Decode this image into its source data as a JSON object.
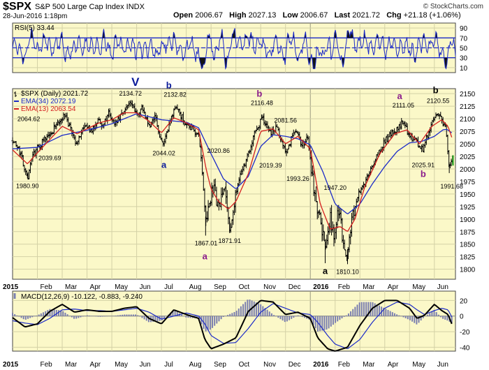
{
  "header": {
    "ticker": "$SPX",
    "description": "S&P 500 Large Cap Index  INDX",
    "date": "28-Jun-2016 1:18pm",
    "credit": "© StockCharts.com",
    "open_label": "Open",
    "open": "2006.67",
    "high_label": "High",
    "high": "2027.13",
    "low_label": "Low",
    "low": "2006.67",
    "last_label": "Last",
    "last": "2021.72",
    "chg_label": "Chg",
    "chg": "+21.18 (+1.06%)"
  },
  "colors": {
    "panel_bg": "#fbf8c8",
    "ema34": "#1c2bc8",
    "ema13": "#d42020",
    "rsi_fill": "#141414",
    "rsi_line": "#1c2bc8",
    "macd_hist": "#7b7fb0",
    "bars": "#000000",
    "wave_blue": "#0a1a9a",
    "wave_purple": "#8a1a8a"
  },
  "chart_data": [
    {
      "type": "line",
      "title": "RSI(5) 33.44",
      "ylim": [
        0,
        100
      ],
      "y_ticks": [
        10,
        30,
        50,
        70,
        90
      ],
      "levels": [
        30,
        50,
        70
      ],
      "value": 33.44
    },
    {
      "type": "line",
      "title": "$SPX (Daily) 2021.72",
      "legend": [
        {
          "name": "$SPX (Daily) 2021.72",
          "color": "#000000"
        },
        {
          "name": "EMA(34) 2072.19",
          "color": "#1c2bc8"
        },
        {
          "name": "EMA(13) 2063.54",
          "color": "#d42020"
        }
      ],
      "ylim": [
        1780,
        2160
      ],
      "y_ticks": [
        1800,
        1825,
        1850,
        1875,
        1900,
        1925,
        1950,
        1975,
        2000,
        2025,
        2050,
        2075,
        2100,
        2125,
        2150
      ],
      "x_labels": [
        {
          "t": 0,
          "label": "2015",
          "bold": true
        },
        {
          "t": 1,
          "label": "Feb"
        },
        {
          "t": 2,
          "label": "Mar"
        },
        {
          "t": 3,
          "label": "Apr"
        },
        {
          "t": 4,
          "label": "May"
        },
        {
          "t": 5,
          "label": "Jun"
        },
        {
          "t": 6,
          "label": "Jul"
        },
        {
          "t": 7,
          "label": "Aug"
        },
        {
          "t": 8,
          "label": "Sep"
        },
        {
          "t": 9,
          "label": "Oct"
        },
        {
          "t": 10,
          "label": "Nov"
        },
        {
          "t": 11,
          "label": "Dec"
        },
        {
          "t": 12,
          "label": "2016",
          "bold": true
        },
        {
          "t": 13,
          "label": "Feb"
        },
        {
          "t": 14,
          "label": "Mar"
        },
        {
          "t": 15,
          "label": "Apr"
        },
        {
          "t": 16,
          "label": "May"
        },
        {
          "t": 17,
          "label": "Jun"
        }
      ],
      "price_points": [
        [
          0.0,
          2058
        ],
        [
          0.25,
          2038
        ],
        [
          0.45,
          2010
        ],
        [
          0.6,
          1981
        ],
        [
          0.8,
          2022
        ],
        [
          1.0,
          2042
        ],
        [
          1.25,
          2055
        ],
        [
          1.5,
          2068
        ],
        [
          1.8,
          2092
        ],
        [
          2.1,
          2105
        ],
        [
          2.35,
          2080
        ],
        [
          2.55,
          2045
        ],
        [
          2.75,
          2072
        ],
        [
          3.0,
          2085
        ],
        [
          3.2,
          2075
        ],
        [
          3.45,
          2102
        ],
        [
          3.65,
          2085
        ],
        [
          3.85,
          2112
        ],
        [
          4.1,
          2090
        ],
        [
          4.35,
          2108
        ],
        [
          4.55,
          2122
        ],
        [
          4.75,
          2130
        ],
        [
          5.0,
          2112
        ],
        [
          5.25,
          2120
        ],
        [
          5.5,
          2085
        ],
        [
          5.75,
          2105
        ],
        [
          5.9,
          2065
        ],
        [
          6.1,
          2048
        ],
        [
          6.35,
          2092
        ],
        [
          6.55,
          2126
        ],
        [
          6.8,
          2105
        ],
        [
          7.0,
          2090
        ],
        [
          7.25,
          2080
        ],
        [
          7.5,
          2065
        ],
        [
          7.65,
          1992
        ],
        [
          7.8,
          1880
        ],
        [
          7.95,
          1940
        ],
        [
          8.1,
          1960
        ],
        [
          8.3,
          1918
        ],
        [
          8.55,
          1962
        ],
        [
          8.75,
          1885
        ],
        [
          8.95,
          1935
        ],
        [
          9.2,
          1992
        ],
        [
          9.45,
          2020
        ],
        [
          9.7,
          2065
        ],
        [
          9.9,
          2085
        ],
        [
          10.05,
          2100
        ],
        [
          10.25,
          2082
        ],
        [
          10.45,
          2072
        ],
        [
          10.65,
          2085
        ],
        [
          10.85,
          2055
        ],
        [
          11.05,
          2030
        ],
        [
          11.25,
          2062
        ],
        [
          11.45,
          2078
        ],
        [
          11.65,
          2045
        ],
        [
          11.9,
          2062
        ],
        [
          12.05,
          1995
        ],
        [
          12.25,
          1925
        ],
        [
          12.45,
          1885
        ],
        [
          12.6,
          1845
        ],
        [
          12.8,
          1905
        ],
        [
          12.95,
          1868
        ],
        [
          13.15,
          1920
        ],
        [
          13.35,
          1842
        ],
        [
          13.5,
          1830
        ],
        [
          13.7,
          1905
        ],
        [
          13.9,
          1948
        ],
        [
          14.2,
          1975
        ],
        [
          14.5,
          2008
        ],
        [
          14.8,
          2035
        ],
        [
          15.0,
          2055
        ],
        [
          15.25,
          2068
        ],
        [
          15.5,
          2082
        ],
        [
          15.75,
          2095
        ],
        [
          15.95,
          2072
        ],
        [
          16.15,
          2058
        ],
        [
          16.4,
          2048
        ],
        [
          16.55,
          2040
        ],
        [
          16.75,
          2072
        ],
        [
          16.95,
          2098
        ],
        [
          17.15,
          2112
        ],
        [
          17.3,
          2096
        ],
        [
          17.45,
          2082
        ],
        [
          17.55,
          2028
        ],
        [
          17.6,
          2000
        ],
        [
          17.7,
          2022
        ]
      ],
      "ema34_points": [
        [
          0.0,
          2040
        ],
        [
          1.0,
          2043
        ],
        [
          2.0,
          2067
        ],
        [
          3.0,
          2077
        ],
        [
          4.0,
          2090
        ],
        [
          5.0,
          2110
        ],
        [
          6.0,
          2098
        ],
        [
          7.0,
          2093
        ],
        [
          7.5,
          2082
        ],
        [
          8.0,
          2030
        ],
        [
          8.5,
          1980
        ],
        [
          9.0,
          1960
        ],
        [
          9.5,
          1985
        ],
        [
          10.0,
          2045
        ],
        [
          10.5,
          2068
        ],
        [
          11.0,
          2065
        ],
        [
          11.5,
          2060
        ],
        [
          12.0,
          2048
        ],
        [
          12.5,
          1995
        ],
        [
          13.0,
          1930
        ],
        [
          13.5,
          1910
        ],
        [
          14.0,
          1930
        ],
        [
          14.5,
          1970
        ],
        [
          15.0,
          2005
        ],
        [
          15.5,
          2035
        ],
        [
          16.0,
          2052
        ],
        [
          16.5,
          2055
        ],
        [
          17.0,
          2065
        ],
        [
          17.35,
          2078
        ],
        [
          17.5,
          2079
        ],
        [
          17.7,
          2072
        ]
      ],
      "ema13_points": [
        [
          0.0,
          2038
        ],
        [
          0.6,
          2010
        ],
        [
          1.0,
          2032
        ],
        [
          2.0,
          2085
        ],
        [
          2.6,
          2070
        ],
        [
          3.0,
          2080
        ],
        [
          3.5,
          2092
        ],
        [
          4.0,
          2098
        ],
        [
          4.5,
          2112
        ],
        [
          5.0,
          2112
        ],
        [
          5.5,
          2095
        ],
        [
          6.0,
          2072
        ],
        [
          6.5,
          2102
        ],
        [
          7.0,
          2092
        ],
        [
          7.5,
          2078
        ],
        [
          7.8,
          2000
        ],
        [
          8.0,
          1960
        ],
        [
          8.3,
          1935
        ],
        [
          8.7,
          1920
        ],
        [
          9.0,
          1935
        ],
        [
          9.5,
          1990
        ],
        [
          10.0,
          2075
        ],
        [
          10.5,
          2080
        ],
        [
          11.0,
          2050
        ],
        [
          11.5,
          2065
        ],
        [
          12.0,
          2040
        ],
        [
          12.4,
          1930
        ],
        [
          12.8,
          1880
        ],
        [
          13.2,
          1885
        ],
        [
          13.5,
          1875
        ],
        [
          13.8,
          1900
        ],
        [
          14.2,
          1965
        ],
        [
          14.8,
          2030
        ],
        [
          15.4,
          2070
        ],
        [
          15.9,
          2078
        ],
        [
          16.4,
          2050
        ],
        [
          16.9,
          2085
        ],
        [
          17.3,
          2098
        ],
        [
          17.55,
          2085
        ],
        [
          17.7,
          2063
        ]
      ],
      "annotations": [
        {
          "t": 0.7,
          "y": 2064.62,
          "text": "2064.62",
          "anchor": "start",
          "dy": -22,
          "dx": -18
        },
        {
          "t": 0.6,
          "y": 1980.9,
          "text": "1980.90",
          "anchor": "middle",
          "dy": 14
        },
        {
          "t": 1.5,
          "y": 2039.69,
          "text": "2039.69",
          "anchor": "middle",
          "dy": 16
        },
        {
          "t": 4.75,
          "y": 2134.72,
          "text": "2134.72",
          "anchor": "middle",
          "dy": -8
        },
        {
          "t": 6.55,
          "y": 2132.82,
          "text": "2132.82",
          "anchor": "middle",
          "dy": -8
        },
        {
          "t": 6.1,
          "y": 2044.02,
          "text": "2044.02",
          "anchor": "middle",
          "dy": 12
        },
        {
          "t": 8.3,
          "y": 2020.86,
          "text": "2020.86",
          "anchor": "middle",
          "dy": -8
        },
        {
          "t": 7.8,
          "y": 1867.01,
          "text": "1867.01",
          "anchor": "middle",
          "dy": 14
        },
        {
          "t": 8.75,
          "y": 1871.91,
          "text": "1871.91",
          "anchor": "middle",
          "dy": 14
        },
        {
          "t": 10.05,
          "y": 2116.48,
          "text": "2116.48",
          "anchor": "middle",
          "dy": -8
        },
        {
          "t": 10.4,
          "y": 2019.39,
          "text": "2019.39",
          "anchor": "middle",
          "dy": 12
        },
        {
          "t": 11.0,
          "y": 2081.56,
          "text": "2081.56",
          "anchor": "middle",
          "dy": -8
        },
        {
          "t": 11.5,
          "y": 1993.26,
          "text": "1993.26",
          "anchor": "middle",
          "dy": 12
        },
        {
          "t": 13.0,
          "y": 1947.2,
          "text": "1947.20",
          "anchor": "middle",
          "dy": -8
        },
        {
          "t": 13.5,
          "y": 1810.1,
          "text": "1810.10",
          "anchor": "middle",
          "dy": 14
        },
        {
          "t": 15.75,
          "y": 2111.05,
          "text": "2111.05",
          "anchor": "middle",
          "dy": -8
        },
        {
          "t": 17.15,
          "y": 2120.55,
          "text": "2120.55",
          "anchor": "middle",
          "dy": -8
        },
        {
          "t": 16.55,
          "y": 2025.91,
          "text": "2025.91",
          "anchor": "middle",
          "dy": 16
        },
        {
          "t": 17.7,
          "y": 1991.68,
          "text": "1991.68",
          "anchor": "middle",
          "dy": 22
        }
      ],
      "wave_labels": [
        {
          "t": 4.95,
          "y": 2134.72,
          "text": "V",
          "color": "#0a1a9a",
          "size": 17,
          "dy": -22
        },
        {
          "t": 6.3,
          "y": 2132.82,
          "text": "b",
          "color": "#0a1a9a",
          "size": 13,
          "dy": -20
        },
        {
          "t": 6.1,
          "y": 2044.02,
          "text": "a",
          "color": "#0a1a9a",
          "size": 13,
          "dy": 30
        },
        {
          "t": 7.75,
          "y": 1867.01,
          "text": "a",
          "color": "#8a1a8a",
          "size": 13,
          "dy": 34
        },
        {
          "t": 9.95,
          "y": 2116.48,
          "text": "b",
          "color": "#8a1a8a",
          "size": 13,
          "dy": -20
        },
        {
          "t": 12.6,
          "y": 1810.1,
          "text": "a",
          "color": "#000000",
          "size": 13,
          "dy": 14
        },
        {
          "t": 15.6,
          "y": 2111.05,
          "text": "a",
          "color": "#8a1a8a",
          "size": 13,
          "dy": -20
        },
        {
          "t": 17.05,
          "y": 2120.55,
          "text": "b",
          "color": "#000000",
          "size": 13,
          "dy": -22
        },
        {
          "t": 16.55,
          "y": 2025.91,
          "text": "b",
          "color": "#8a1a8a",
          "size": 13,
          "dy": 30
        }
      ]
    },
    {
      "type": "line",
      "title": "MACD(12,26,9) -10.122, -0.883, -9.240",
      "ylim": [
        -45,
        32
      ],
      "y_ticks": [
        -40,
        -20,
        0,
        20
      ],
      "macd_points": [
        [
          0.0,
          -2
        ],
        [
          0.5,
          -14
        ],
        [
          1.0,
          -10
        ],
        [
          1.5,
          6
        ],
        [
          2.0,
          15
        ],
        [
          2.5,
          5
        ],
        [
          3.0,
          8
        ],
        [
          3.5,
          6
        ],
        [
          4.0,
          6
        ],
        [
          4.5,
          10
        ],
        [
          5.0,
          12
        ],
        [
          5.5,
          -3
        ],
        [
          6.0,
          -10
        ],
        [
          6.5,
          8
        ],
        [
          7.0,
          2
        ],
        [
          7.5,
          -3
        ],
        [
          7.75,
          -30
        ],
        [
          8.0,
          -42
        ],
        [
          8.5,
          -36
        ],
        [
          9.0,
          -28
        ],
        [
          9.5,
          6
        ],
        [
          10.0,
          20
        ],
        [
          10.5,
          18
        ],
        [
          11.0,
          2
        ],
        [
          11.5,
          5
        ],
        [
          12.0,
          -3
        ],
        [
          12.3,
          -28
        ],
        [
          12.7,
          -42
        ],
        [
          13.0,
          -45
        ],
        [
          13.5,
          -40
        ],
        [
          14.0,
          -12
        ],
        [
          14.5,
          10
        ],
        [
          15.0,
          20
        ],
        [
          15.5,
          20
        ],
        [
          16.0,
          10
        ],
        [
          16.3,
          -3
        ],
        [
          16.6,
          1
        ],
        [
          17.0,
          15
        ],
        [
          17.3,
          7
        ],
        [
          17.55,
          2
        ],
        [
          17.7,
          -10
        ]
      ],
      "signal_points": [
        [
          0.0,
          -6
        ],
        [
          0.5,
          -9
        ],
        [
          1.0,
          -11
        ],
        [
          1.5,
          -3
        ],
        [
          2.0,
          8
        ],
        [
          2.5,
          9
        ],
        [
          3.0,
          7
        ],
        [
          3.5,
          7
        ],
        [
          4.0,
          6
        ],
        [
          4.5,
          8
        ],
        [
          5.0,
          10
        ],
        [
          5.5,
          5
        ],
        [
          6.0,
          -4
        ],
        [
          6.5,
          0
        ],
        [
          7.0,
          4
        ],
        [
          7.5,
          0
        ],
        [
          7.75,
          -10
        ],
        [
          8.0,
          -25
        ],
        [
          8.5,
          -35
        ],
        [
          9.0,
          -34
        ],
        [
          9.5,
          -16
        ],
        [
          10.0,
          5
        ],
        [
          10.5,
          16
        ],
        [
          11.0,
          10
        ],
        [
          11.5,
          4
        ],
        [
          12.0,
          2
        ],
        [
          12.3,
          -8
        ],
        [
          12.7,
          -25
        ],
        [
          13.0,
          -36
        ],
        [
          13.5,
          -42
        ],
        [
          14.0,
          -30
        ],
        [
          14.5,
          -8
        ],
        [
          15.0,
          10
        ],
        [
          15.5,
          18
        ],
        [
          16.0,
          15
        ],
        [
          16.3,
          8
        ],
        [
          16.6,
          2
        ],
        [
          17.0,
          7
        ],
        [
          17.3,
          10
        ],
        [
          17.55,
          8
        ],
        [
          17.7,
          -1
        ]
      ]
    }
  ]
}
